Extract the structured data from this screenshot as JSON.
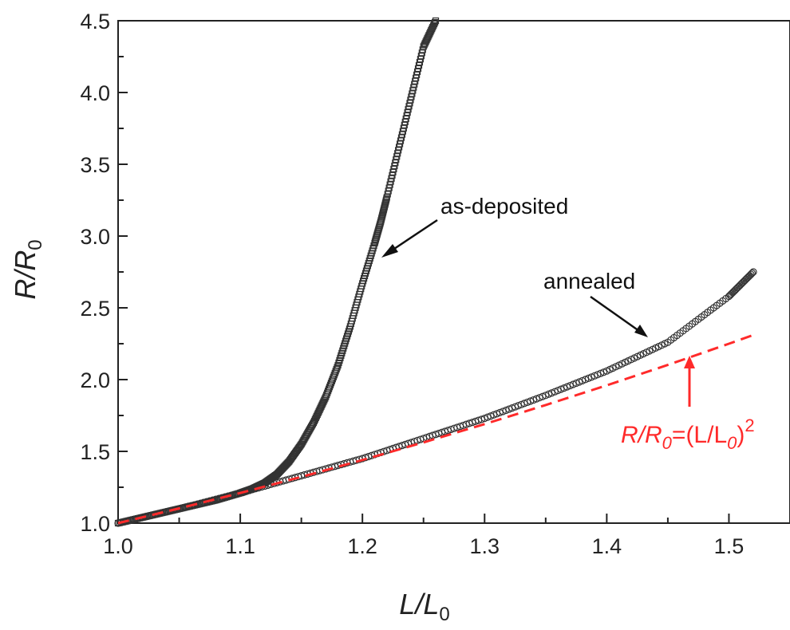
{
  "chart_data": {
    "type": "scatter",
    "xlabel": {
      "main": "L/L",
      "sub": "0"
    },
    "ylabel": {
      "main": "R/R",
      "sub": "0"
    },
    "xlim": [
      1.0,
      1.55
    ],
    "ylim": [
      1.0,
      4.5
    ],
    "x_ticks": [
      "1.0",
      "1.1",
      "1.2",
      "1.3",
      "1.4",
      "1.5"
    ],
    "x_tick_values": [
      1.0,
      1.1,
      1.2,
      1.3,
      1.4,
      1.5
    ],
    "y_ticks": [
      "1.0",
      "1.5",
      "2.0",
      "2.5",
      "3.0",
      "3.5",
      "4.0",
      "4.5"
    ],
    "y_tick_values": [
      1.0,
      1.5,
      2.0,
      2.5,
      3.0,
      3.5,
      4.0,
      4.5
    ],
    "grid": false,
    "series": [
      {
        "label": "as-deposited",
        "marker": "open-square",
        "color": "#333333",
        "x": [
          1.0,
          1.02,
          1.04,
          1.06,
          1.08,
          1.1,
          1.11,
          1.12,
          1.13,
          1.14,
          1.15,
          1.16,
          1.17,
          1.18,
          1.19,
          1.2,
          1.21,
          1.215,
          1.22,
          1.23,
          1.24,
          1.25,
          1.26
        ],
        "y": [
          1.0,
          1.04,
          1.08,
          1.12,
          1.16,
          1.21,
          1.24,
          1.28,
          1.34,
          1.43,
          1.55,
          1.7,
          1.88,
          2.1,
          2.37,
          2.67,
          2.95,
          3.1,
          3.27,
          3.62,
          3.97,
          4.32,
          4.5
        ]
      },
      {
        "label": "annealed",
        "marker": "open-circle",
        "color": "#333333",
        "x": [
          1.0,
          1.05,
          1.1,
          1.15,
          1.2,
          1.25,
          1.3,
          1.35,
          1.4,
          1.45,
          1.5,
          1.52
        ],
        "y": [
          1.0,
          1.1,
          1.21,
          1.33,
          1.45,
          1.59,
          1.73,
          1.89,
          2.06,
          2.26,
          2.58,
          2.75
        ]
      },
      {
        "label": "R/R0=(L/L0)^2",
        "style": "dashed-line",
        "color": "#ff2a2a",
        "x": [
          1.0,
          1.05,
          1.1,
          1.15,
          1.2,
          1.25,
          1.3,
          1.35,
          1.4,
          1.45,
          1.5,
          1.52
        ],
        "y": [
          1.0,
          1.1025,
          1.21,
          1.3225,
          1.44,
          1.5625,
          1.69,
          1.8225,
          1.96,
          2.1025,
          2.25,
          2.3104
        ]
      }
    ],
    "annotations": [
      {
        "text": "as-deposited",
        "arrow_to": [
          1.215,
          2.87
        ]
      },
      {
        "text": "annealed",
        "arrow_to": [
          1.43,
          2.24
        ]
      },
      {
        "text_parts": [
          "R/R",
          "0",
          "=(L/L",
          "0",
          ")",
          "2"
        ],
        "color": "#ff2a2a",
        "arrow_to": [
          1.465,
          2.15
        ]
      }
    ]
  }
}
